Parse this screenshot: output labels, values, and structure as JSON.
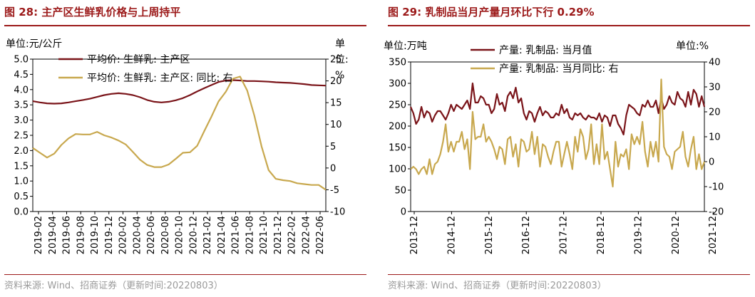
{
  "colors": {
    "accent": "#9c1a1a",
    "series_dark": "#7a1419",
    "series_gold": "#c8a84e",
    "neg_tick": "#e02020",
    "source_text": "#9a9a9a"
  },
  "left": {
    "title": "图 28:  主产区生鲜乳价格与上周持平",
    "source": "资料来源:  Wind、招商证券（更新时间:20220803）",
    "unit_left": "单位:元/公斤",
    "unit_right_chars": [
      "单",
      "位:",
      "%"
    ],
    "chart_data": {
      "type": "line",
      "x_ticks": [
        "2019-02",
        "2019-04",
        "2019-06",
        "2019-08",
        "2019-10",
        "2019-12",
        "2020-02",
        "2020-04",
        "2020-06",
        "2020-08",
        "2020-10",
        "2020-12",
        "2021-02",
        "2021-04",
        "2021-06",
        "2021-08",
        "2021-10",
        "2021-12",
        "2022-02",
        "2022-04",
        "2022-06"
      ],
      "y_left": {
        "range": [
          0,
          5
        ],
        "ticks": [
          "0.0",
          "0.5",
          "1.0",
          "1.5",
          "2.0",
          "2.5",
          "3.0",
          "3.5",
          "4.0",
          "4.5",
          "5.0"
        ]
      },
      "y_right": {
        "range": [
          -10,
          25
        ],
        "ticks": [
          "-10",
          "-5",
          "0",
          "5",
          "10",
          "15",
          "20",
          "25"
        ]
      },
      "series": [
        {
          "name": "平均价: 生鲜乳: 主产区",
          "axis": "left",
          "values": [
            3.62,
            3.58,
            3.55,
            3.54,
            3.55,
            3.58,
            3.62,
            3.66,
            3.7,
            3.76,
            3.82,
            3.86,
            3.88,
            3.86,
            3.82,
            3.75,
            3.66,
            3.6,
            3.58,
            3.6,
            3.65,
            3.72,
            3.82,
            3.94,
            4.05,
            4.15,
            4.25,
            4.3,
            4.31,
            4.3,
            4.28,
            4.28,
            4.27,
            4.26,
            4.24,
            4.23,
            4.22,
            4.2,
            4.18,
            4.15,
            4.14,
            4.13
          ]
        },
        {
          "name": "平均价: 生鲜乳: 主产区: 同比:  右",
          "axis": "right",
          "values": [
            4.6,
            3.5,
            2.4,
            3.3,
            5.3,
            6.8,
            7.8,
            7.7,
            7.7,
            8.3,
            7.5,
            7.0,
            6.3,
            5.4,
            3.7,
            1.9,
            0.7,
            0.2,
            0.2,
            0.8,
            2.1,
            3.5,
            3.6,
            5.1,
            8.5,
            11.8,
            15.3,
            17.5,
            20.5,
            21.0,
            17.8,
            12.0,
            5.0,
            -0.5,
            -2.5,
            -2.8,
            -3.0,
            -3.5,
            -3.7,
            -3.9,
            -3.9,
            -5.0
          ]
        }
      ]
    }
  },
  "right": {
    "title": "图 29:  乳制品当月产量月环比下行 0.29%",
    "source": "资料来源:  Wind、招商证券（更新时间:20220803）",
    "unit_left": "单位:万吨",
    "unit_right": "单位:%",
    "chart_data": {
      "type": "line",
      "x_ticks": [
        "2013-12",
        "2014-12",
        "2015-12",
        "2016-12",
        "2017-12",
        "2018-12",
        "2019-12",
        "2020-12",
        "2021-12"
      ],
      "y_left": {
        "range": [
          0,
          350
        ],
        "ticks": [
          "0",
          "50",
          "100",
          "150",
          "200",
          "250",
          "300",
          "350"
        ]
      },
      "y_right": {
        "range": [
          -20,
          40
        ],
        "ticks": [
          "-20",
          "-10",
          "0",
          "10",
          "20",
          "30",
          "40"
        ]
      },
      "series": [
        {
          "name": "产量: 乳制品: 当月值",
          "axis": "left",
          "values": [
            245,
            230,
            205,
            215,
            245,
            220,
            235,
            230,
            210,
            225,
            235,
            235,
            225,
            215,
            230,
            250,
            235,
            250,
            245,
            240,
            250,
            260,
            240,
            300,
            255,
            255,
            270,
            265,
            250,
            250,
            230,
            240,
            275,
            250,
            255,
            235,
            270,
            280,
            265,
            290,
            255,
            265,
            230,
            215,
            235,
            230,
            210,
            230,
            245,
            225,
            235,
            230,
            220,
            220,
            230,
            225,
            250,
            230,
            240,
            220,
            215,
            230,
            225,
            230,
            220,
            215,
            225,
            220,
            220,
            215,
            230,
            210,
            225,
            220,
            200,
            225,
            225,
            205,
            195,
            180,
            225,
            250,
            245,
            240,
            230,
            225,
            250,
            245,
            260,
            245,
            245,
            260,
            230,
            265,
            240,
            250,
            270,
            255,
            250,
            280,
            265,
            260,
            245,
            280,
            250,
            285,
            275,
            245,
            270,
            245
          ]
        },
        {
          "name": "产量: 乳制品: 当月同比:  右",
          "axis": "right",
          "values": [
            -3,
            -2,
            -3,
            -5,
            -3,
            -2,
            -5,
            1,
            -5,
            -1,
            0,
            3,
            8,
            15,
            4,
            8,
            4,
            8,
            8,
            12,
            5,
            9,
            -3,
            20,
            9,
            10,
            10,
            15,
            8,
            10,
            8,
            5,
            1,
            6,
            5,
            -1,
            9,
            10,
            2,
            7,
            -2,
            9,
            8,
            4,
            5,
            12,
            3,
            10,
            -2,
            7,
            6,
            2,
            -1,
            4,
            8,
            8,
            -2,
            3,
            8,
            3,
            -3,
            10,
            4,
            13,
            10,
            1,
            5,
            15,
            -1,
            7,
            -1,
            15,
            1,
            4,
            -3,
            -10,
            8,
            -2,
            3,
            2,
            5,
            -3,
            11,
            7,
            10,
            7,
            16,
            4,
            -2,
            8,
            2,
            8,
            0,
            33,
            6,
            3,
            2,
            -3,
            4,
            5,
            6,
            12,
            2,
            -2,
            5,
            10,
            -3,
            3,
            -3,
            0
          ]
        }
      ]
    }
  }
}
